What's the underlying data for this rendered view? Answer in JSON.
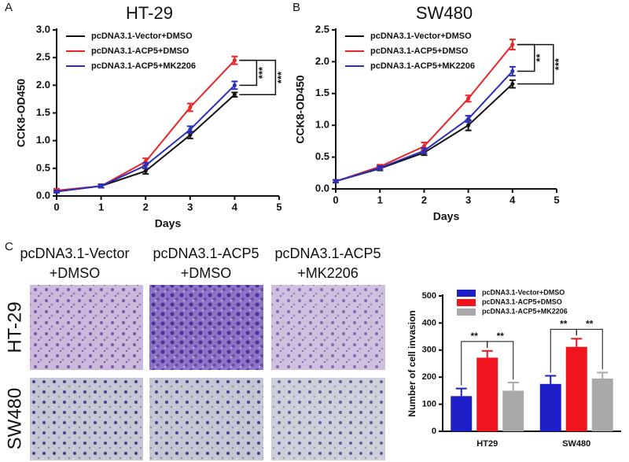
{
  "panels": {
    "labels": [
      "A",
      "B",
      "C"
    ]
  },
  "images": {
    "columns": [
      [
        "pcDNA3.1-Vector",
        "+DMSO"
      ],
      [
        "pcDNA3.1-ACP5",
        "+DMSO"
      ],
      [
        "pcDNA3.1-ACP5",
        "+MK2206"
      ]
    ],
    "rows": [
      "HT-29",
      "SW480"
    ]
  },
  "chart_data": [
    {
      "type": "line",
      "title": "HT-29",
      "xlabel": "Days",
      "ylabel": "CCK8-OD450",
      "x": [
        0,
        1,
        2,
        3,
        4
      ],
      "xlim": [
        0,
        5
      ],
      "xticks": [
        0,
        1,
        2,
        3,
        4,
        5
      ],
      "ylim": [
        0,
        3
      ],
      "yticks": [
        {
          "value": 0,
          "label": "0.0"
        },
        0.5,
        {
          "value": 1,
          "label": "1.0"
        },
        1.5,
        {
          "value": 2,
          "label": "2.0"
        },
        2.5,
        {
          "value": 3,
          "label": "3.0"
        }
      ],
      "legend": "upper left",
      "series": [
        {
          "name": "pcDNA3.1-Vector+DMSO",
          "color": "#111111",
          "values": [
            0.08,
            0.18,
            0.45,
            1.1,
            1.83
          ],
          "errors": [
            0.02,
            0.03,
            0.05,
            0.06,
            0.04
          ]
        },
        {
          "name": "pcDNA3.1-ACP5+DMSO",
          "color": "#e8262a",
          "values": [
            0.1,
            0.18,
            0.62,
            1.6,
            2.45
          ],
          "errors": [
            0.03,
            0.03,
            0.06,
            0.07,
            0.07
          ]
        },
        {
          "name": "pcDNA3.1-ACP5+MK2206",
          "color": "#2b2fb8",
          "values": [
            0.08,
            0.18,
            0.55,
            1.2,
            2.0
          ],
          "errors": [
            0.02,
            0.03,
            0.05,
            0.06,
            0.07
          ]
        }
      ],
      "annotations": [
        "***",
        "***"
      ]
    },
    {
      "type": "line",
      "title": "SW480",
      "xlabel": "Days",
      "ylabel": "CCK8-OD450",
      "x": [
        0,
        1,
        2,
        3,
        4
      ],
      "xlim": [
        0,
        5
      ],
      "xticks": [
        0,
        1,
        2,
        3,
        4,
        5
      ],
      "ylim": [
        0,
        2.5
      ],
      "yticks": [
        {
          "value": 0,
          "label": "0.0"
        },
        0.5,
        {
          "value": 1,
          "label": "1.0"
        },
        1.5,
        {
          "value": 2,
          "label": "2.0"
        },
        2.5
      ],
      "legend": "upper left",
      "series": [
        {
          "name": "pcDNA3.1-Vector+DMSO",
          "color": "#111111",
          "values": [
            0.12,
            0.32,
            0.57,
            1.0,
            1.65
          ],
          "errors": [
            0.02,
            0.03,
            0.04,
            0.08,
            0.06
          ]
        },
        {
          "name": "pcDNA3.1-ACP5+DMSO",
          "color": "#e8262a",
          "values": [
            0.12,
            0.35,
            0.67,
            1.42,
            2.27
          ],
          "errors": [
            0.02,
            0.03,
            0.06,
            0.05,
            0.08
          ]
        },
        {
          "name": "pcDNA3.1-ACP5+MK2206",
          "color": "#2b2fb8",
          "values": [
            0.12,
            0.33,
            0.6,
            1.1,
            1.85
          ],
          "errors": [
            0.02,
            0.03,
            0.04,
            0.05,
            0.07
          ]
        }
      ],
      "annotations": [
        "**",
        "***"
      ]
    },
    {
      "type": "bar",
      "ylabel": "Number of cell invasion",
      "categories": [
        "HT29",
        "SW480"
      ],
      "ylim": [
        0,
        500
      ],
      "yticks": [
        0,
        100,
        200,
        300,
        400,
        500
      ],
      "legend": "upper left",
      "series": [
        {
          "name": "pcDNA3.1-Vector+DMSO",
          "color": "#1f1fc8",
          "values": [
            130,
            175
          ],
          "errors": [
            28,
            30
          ]
        },
        {
          "name": "pcDNA3.1-ACP5+DMSO",
          "color": "#f0141e",
          "values": [
            272,
            312
          ],
          "errors": [
            25,
            30
          ]
        },
        {
          "name": "pcDNA3.1-ACP5+MK2206",
          "color": "#a9a9a9",
          "values": [
            150,
            195
          ],
          "errors": [
            30,
            22
          ]
        }
      ],
      "annotations": [
        "**",
        "**",
        "**",
        "**"
      ]
    }
  ]
}
